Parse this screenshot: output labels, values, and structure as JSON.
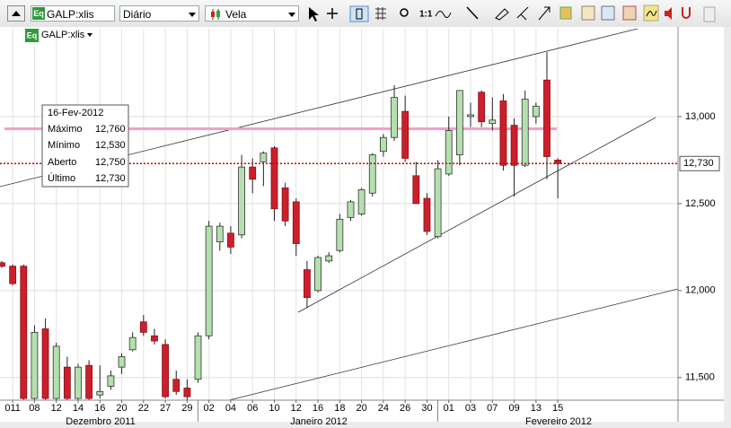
{
  "toolbar": {
    "badge": "Eq",
    "symbol": "GALP:xlis",
    "period": "Diário",
    "chart_style": "Vela",
    "zoom": "1:1"
  },
  "legend": {
    "badge": "Eq",
    "symbol": "GALP:xlis"
  },
  "info_box": {
    "date": "16-Fev-2012",
    "rows": [
      {
        "label": "Máximo",
        "value": "12,760"
      },
      {
        "label": "Mínimo",
        "value": "12,530"
      },
      {
        "label": "Aberto",
        "value": "12,750"
      },
      {
        "label": "Último",
        "value": "12,730"
      }
    ]
  },
  "chart_data": {
    "type": "candlestick",
    "categories": [
      null,
      "011",
      null,
      "08",
      null,
      "12",
      null,
      "14",
      null,
      "16",
      null,
      "20",
      null,
      "22",
      null,
      "27",
      null,
      "29",
      null,
      "02",
      null,
      "04",
      null,
      "06",
      null,
      "10",
      null,
      "12",
      null,
      "16",
      null,
      "18",
      null,
      "20",
      null,
      "24",
      null,
      "26",
      null,
      "30",
      null,
      "01",
      null,
      "03",
      null,
      "07",
      null,
      "09",
      null,
      "13",
      null,
      "15"
    ],
    "x_groups": [
      "Dezembro 2011",
      "Janeiro 2012",
      "Fevereiro 2012"
    ],
    "open": [
      12160,
      12140,
      12140,
      11380,
      11780,
      11380,
      11560,
      11380,
      11570,
      11400,
      11450,
      11560,
      11660,
      11820,
      11740,
      11690,
      11490,
      11440,
      11490,
      11740,
      12280,
      12330,
      12320,
      12710,
      12740,
      12820,
      12590,
      12510,
      12120,
      12000,
      12170,
      12230,
      12420,
      12440,
      12560,
      12800,
      12880,
      13030,
      12660,
      12530,
      12310,
      12670,
      12780,
      13000,
      13140,
      12960,
      13090,
      12950,
      12720,
      13000,
      13210,
      12750
    ],
    "high": [
      12170,
      12150,
      12150,
      11800,
      11840,
      11700,
      11620,
      11580,
      11600,
      11570,
      11540,
      11640,
      11760,
      11860,
      11780,
      11720,
      11540,
      11490,
      11760,
      12400,
      12390,
      12370,
      12780,
      12760,
      12800,
      12830,
      12620,
      12530,
      12170,
      12200,
      12220,
      12440,
      12520,
      12590,
      12790,
      12900,
      13180,
      13120,
      12740,
      12560,
      12750,
      13000,
      13150,
      13080,
      13150,
      13110,
      13130,
      12990,
      13150,
      13080,
      13370,
      12760
    ],
    "low": [
      12130,
      12030,
      11330,
      11330,
      11340,
      11340,
      11360,
      11350,
      11370,
      11380,
      11430,
      11520,
      11650,
      11740,
      11690,
      11380,
      11400,
      11360,
      11470,
      11720,
      12230,
      12210,
      12300,
      12560,
      12600,
      12400,
      12370,
      12200,
      11900,
      11990,
      12160,
      12220,
      12400,
      12430,
      12540,
      12770,
      12860,
      12740,
      12500,
      12320,
      12300,
      12660,
      12720,
      12940,
      12940,
      12920,
      12690,
      12540,
      12710,
      12960,
      12640,
      12530
    ],
    "close": [
      12140,
      12040,
      11380,
      11760,
      11380,
      11680,
      11380,
      11560,
      11380,
      11420,
      11510,
      11620,
      11730,
      11760,
      11710,
      11390,
      11420,
      11390,
      11740,
      12370,
      12370,
      12250,
      12710,
      12640,
      12790,
      12470,
      12400,
      12270,
      11960,
      12190,
      12200,
      12410,
      12510,
      12580,
      12780,
      12880,
      13110,
      12760,
      12500,
      12340,
      12700,
      12920,
      13150,
      13010,
      12970,
      12980,
      12720,
      12720,
      13100,
      13060,
      12770,
      12730
    ],
    "up_color": "#b4dfae",
    "down_color": "#cc1f2a",
    "ylim": [
      11370,
      13505
    ],
    "yticks": [
      {
        "value": 11500,
        "label": "11,500"
      },
      {
        "value": 12000,
        "label": "12,000"
      },
      {
        "value": 12500,
        "label": "12,500"
      },
      {
        "value": 13000,
        "label": "13,000"
      }
    ],
    "grid": true,
    "last_price": {
      "value": 12730,
      "label": "12,730",
      "color": "#cc0000"
    },
    "horizontal_line": {
      "value": 12930,
      "color": "#f4a0c8"
    }
  }
}
